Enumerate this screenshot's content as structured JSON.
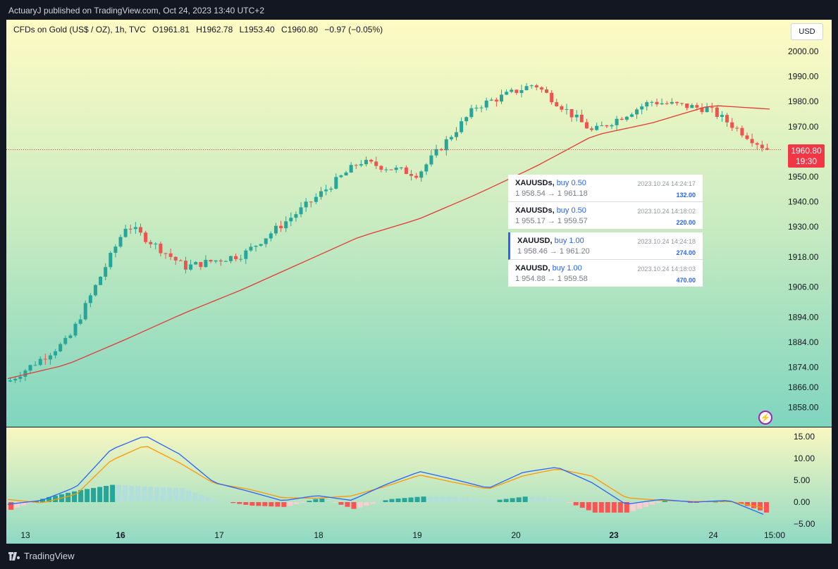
{
  "header": {
    "publisher": "ActuaryJ published on TradingView.com, Oct 24, 2023 13:40 UTC+2"
  },
  "legend": {
    "symbol": "CFDs on Gold (US$ / OZ), 1h, TVC",
    "open": "O1961.81",
    "high": "H1962.78",
    "low": "L1953.40",
    "close": "C1960.80",
    "change": "−0.97 (−0.05%)"
  },
  "currency": "USD",
  "price_tag": {
    "price": "1960.80",
    "countdown": "19:30"
  },
  "trades": [
    {
      "symbol": "XAUUSDs,",
      "side": "buy 0.50",
      "time": "2023.10.24 14:24:17",
      "prices": "1 958.54 → 1 961.18",
      "profit": "132.00"
    },
    {
      "symbol": "XAUUSDs,",
      "side": "buy 0.50",
      "time": "2023.10.24 14:18:02",
      "prices": "1 955.17 → 1 959.57",
      "profit": "220.00"
    },
    {
      "symbol": "XAUUSD,",
      "side": "buy 1.00",
      "time": "2023.10.24 14:24:18",
      "prices": "1 958.46 → 1 961.20",
      "profit": "274.00"
    },
    {
      "symbol": "XAUUSD,",
      "side": "buy 1.00",
      "time": "2023.10.24 14:18:03",
      "prices": "1 954.88 → 1 959.58",
      "profit": "470.00"
    }
  ],
  "footer": {
    "brand": "TradingView"
  },
  "colors": {
    "up": "#26a69a",
    "down": "#ef5350",
    "ma": "#e53935",
    "macd": "#2962ff",
    "signal": "#ff9800",
    "hist_up_strong": "#26a69a",
    "hist_up_weak": "#b2dfdb",
    "hist_down_strong": "#ff5252",
    "hist_down_weak": "#ffcdd2"
  },
  "chart_data": [
    {
      "type": "candlestick",
      "title": "CFDs on Gold (US$ / OZ), 1h, TVC",
      "xlabel": "",
      "ylabel": "",
      "x_tick_labels": [
        "13",
        "16",
        "17",
        "18",
        "19",
        "20",
        "23",
        "24",
        "15:00"
      ],
      "y_tick_labels": [
        "2000.00",
        "1990.00",
        "1980.00",
        "1970.00",
        "1960.00",
        "1950.00",
        "1940.00",
        "1930.00",
        "1918.00",
        "1906.00",
        "1894.00",
        "1884.00",
        "1874.00",
        "1866.00",
        "1858.00"
      ],
      "ylim": [
        1855,
        2004
      ],
      "ohlc_keypoints": [
        {
          "day": "13",
          "close": 1868.8
        },
        {
          "day": "13",
          "close": 1885.0
        },
        {
          "day": "16",
          "close": 1931.0,
          "high": 1933.5
        },
        {
          "day": "16",
          "close": 1914.0
        },
        {
          "day": "17",
          "close": 1919.0
        },
        {
          "day": "18",
          "close": 1937.0
        },
        {
          "day": "18",
          "close": 1956.0,
          "high": 1964.0
        },
        {
          "day": "19",
          "close": 1951.0
        },
        {
          "day": "20",
          "close": 1978.0
        },
        {
          "day": "20",
          "close": 1987.0,
          "high": 1997.5
        },
        {
          "day": "23",
          "close": 1968.0
        },
        {
          "day": "23",
          "close": 1980.0
        },
        {
          "day": "24",
          "close": 1977.0
        },
        {
          "day": "24",
          "close": 1960.8,
          "low": 1953.4
        }
      ],
      "moving_average": {
        "color": "#e53935",
        "keypoints": [
          1869.5,
          1875.0,
          1885.0,
          1895.5,
          1905.0,
          1915.5,
          1926.0,
          1933.0,
          1943.0,
          1954.0,
          1966.5,
          1971.5,
          1978.5,
          1977.0
        ]
      },
      "last_price": 1960.8,
      "price_line": 1960.8
    },
    {
      "type": "line",
      "title": "MACD",
      "y_tick_labels": [
        "15.00",
        "10.00",
        "5.00",
        "0.00",
        "−5.00"
      ],
      "ylim": [
        -5.5,
        16.5
      ],
      "series": [
        {
          "values": [
            -0.5,
            0.4,
            3.5,
            12.0,
            15.2,
            11.0,
            4.5,
            2.5,
            0.3,
            1.5,
            0.4,
            4.0,
            7.0,
            5.2,
            3.2,
            6.8,
            8.0,
            4.5,
            -0.5,
            0.6,
            0.0,
            0.4,
            -2.8
          ]
        },
        {
          "values": [
            0.6,
            -0.2,
            1.8,
            9.5,
            13.0,
            9.0,
            4.3,
            3.0,
            1.0,
            0.9,
            1.4,
            3.6,
            6.2,
            4.5,
            3.0,
            6.0,
            7.6,
            6.0,
            1.0,
            0.4,
            0.1,
            0.2,
            -1.3
          ]
        }
      ]
    }
  ]
}
